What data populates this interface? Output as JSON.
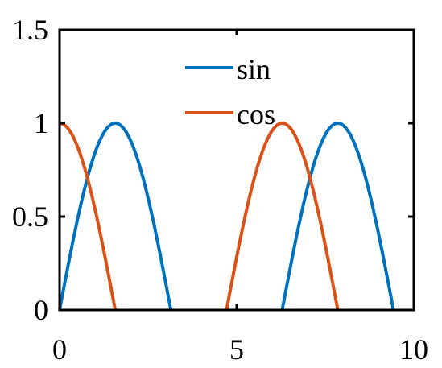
{
  "chart_data": {
    "type": "line",
    "title": "",
    "xlabel": "",
    "ylabel": "",
    "xlim": [
      0,
      10
    ],
    "ylim": [
      0,
      1.5
    ],
    "x_ticks": [
      0,
      5,
      10
    ],
    "x_tick_labels": [
      "0",
      "5",
      "10"
    ],
    "y_ticks": [
      0,
      0.5,
      1,
      1.5
    ],
    "y_tick_labels": [
      "0",
      "0.5",
      "1",
      "1.5"
    ],
    "grid": false,
    "legend": {
      "position": "top-center",
      "show": true
    },
    "series": [
      {
        "name": "sin",
        "color": "#0072BD",
        "function": "sin",
        "domains": [
          [
            0,
            3.1416
          ],
          [
            6.2832,
            9.4248
          ]
        ]
      },
      {
        "name": "cos",
        "color": "#D95319",
        "function": "cos",
        "domains": [
          [
            0,
            1.5708
          ],
          [
            4.7124,
            7.854
          ]
        ]
      }
    ]
  }
}
